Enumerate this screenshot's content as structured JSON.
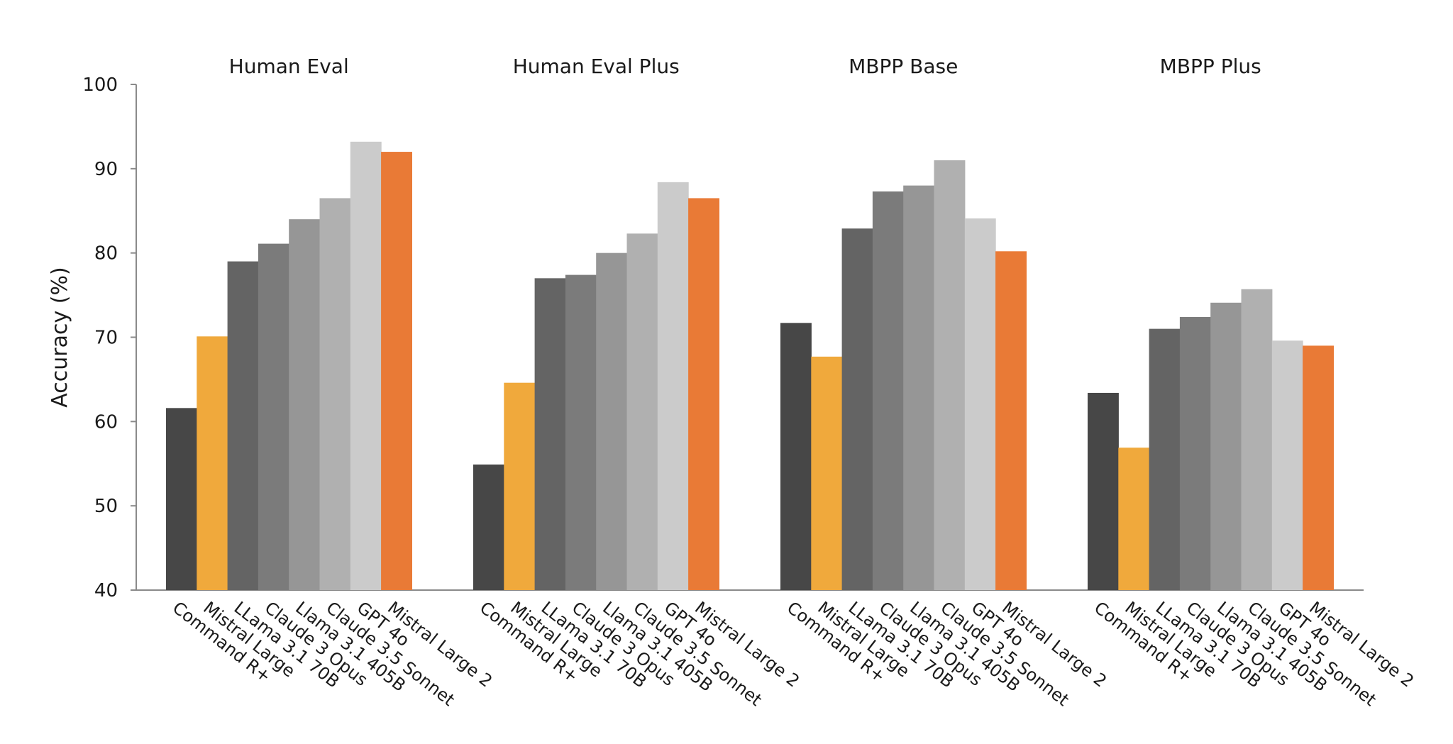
{
  "chart_data": {
    "type": "bar",
    "ylabel": "Accuracy (%)",
    "ylim": [
      40,
      100
    ],
    "yticks": [
      40,
      50,
      60,
      70,
      80,
      90,
      100
    ],
    "grid": false,
    "legend": "none",
    "models": [
      "Command R+",
      "Mistral Large",
      "LLama 3.1 70B",
      "Claude 3 Opus",
      "Llama 3.1 405B",
      "Claude 3.5 Sonnet",
      "GPT 4o",
      "Mistral Large 2"
    ],
    "colors": [
      "#474747",
      "#f0a93c",
      "#646464",
      "#7b7b7b",
      "#969696",
      "#b0b0b0",
      "#cbcbcb",
      "#e97a36"
    ],
    "groups": [
      {
        "title": "Human Eval",
        "values": [
          61.6,
          70.1,
          79.0,
          81.1,
          84.0,
          86.5,
          93.2,
          92.0
        ]
      },
      {
        "title": "Human Eval Plus",
        "values": [
          54.9,
          64.6,
          77.0,
          77.4,
          80.0,
          82.3,
          88.4,
          86.5
        ]
      },
      {
        "title": "MBPP Base",
        "values": [
          71.7,
          67.7,
          82.9,
          87.3,
          88.0,
          91.0,
          84.1,
          80.2
        ]
      },
      {
        "title": "MBPP Plus",
        "values": [
          63.4,
          56.9,
          71.0,
          72.4,
          74.1,
          75.7,
          69.6,
          69.0
        ]
      }
    ]
  }
}
